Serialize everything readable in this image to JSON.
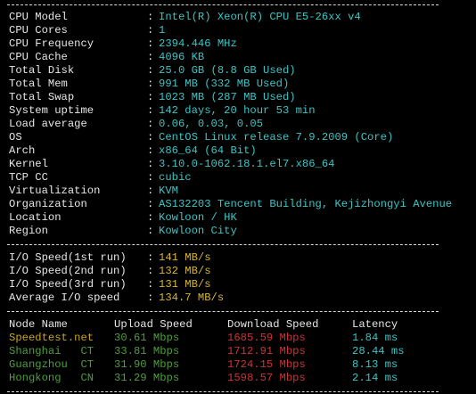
{
  "separator": ":",
  "system_info": [
    [
      "CPU Model",
      "Intel(R) Xeon(R) CPU E5-26xx v4"
    ],
    [
      "CPU Cores",
      "1"
    ],
    [
      "CPU Frequency",
      "2394.446 MHz"
    ],
    [
      "CPU Cache",
      "4096 KB"
    ],
    [
      "Total Disk",
      "25.0 GB (8.8 GB Used)"
    ],
    [
      "Total Mem",
      "991 MB (332 MB Used)"
    ],
    [
      "Total Swap",
      "1023 MB (287 MB Used)"
    ],
    [
      "System uptime",
      "142 days, 20 hour 53 min"
    ],
    [
      "Load average",
      "0.06, 0.03, 0.05"
    ],
    [
      "OS",
      "CentOS Linux release 7.9.2009 (Core)"
    ],
    [
      "Arch",
      "x86_64 (64 Bit)"
    ],
    [
      "Kernel",
      "3.10.0-1062.18.1.el7.x86_64"
    ],
    [
      "TCP CC",
      "cubic"
    ],
    [
      "Virtualization",
      "KVM"
    ],
    [
      "Organization",
      "AS132203 Tencent Building, Kejizhongyi Avenue"
    ],
    [
      "Location",
      "Kowloon / HK"
    ],
    [
      "Region",
      "Kowloon City"
    ]
  ],
  "io_speed": [
    [
      "I/O Speed(1st run)",
      "141 MB/s"
    ],
    [
      "I/O Speed(2nd run)",
      "132 MB/s"
    ],
    [
      "I/O Speed(3rd run)",
      "131 MB/s"
    ],
    [
      "Average I/O speed",
      "134.7 MB/s"
    ]
  ],
  "speed_table": {
    "header": [
      "Node Name",
      "Upload Speed",
      "Download Speed",
      "Latency"
    ],
    "rows": [
      [
        "Speedtest.net",
        "30.61 Mbps",
        "1685.59 Mbps",
        "1.84 ms"
      ],
      [
        "Shanghai   CT",
        "33.81 Mbps",
        "1712.91 Mbps",
        "28.44 ms"
      ],
      [
        "Guangzhou  CT",
        "31.90 Mbps",
        "1724.15 Mbps",
        "8.13 ms"
      ],
      [
        "Hongkong   CN",
        "31.29 Mbps",
        "1598.57 Mbps",
        "2.14 ms"
      ]
    ]
  }
}
